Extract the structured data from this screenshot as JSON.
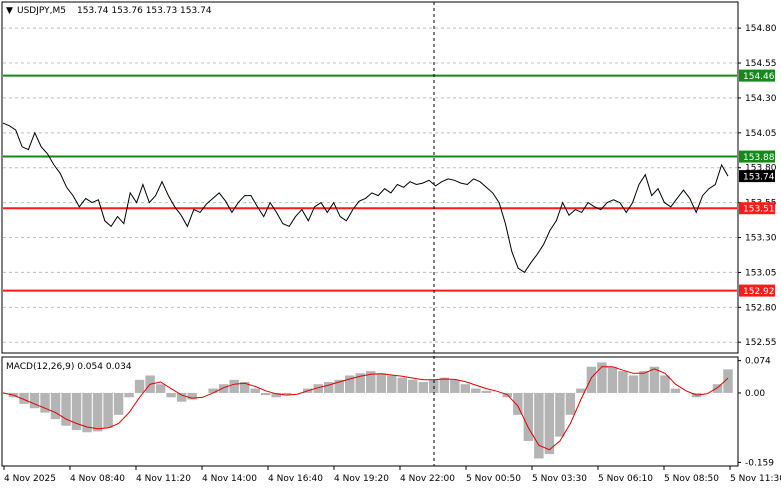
{
  "header": {
    "symbol": "USDJPY,M5",
    "ohlc": "153.74 153.76 153.73 153.74"
  },
  "macd_header": {
    "label": "MACD(12,26,9) 0.054 0.034"
  },
  "colors": {
    "resistance": "#138a1a",
    "support": "#ff1a1a",
    "price_line": "#000000",
    "macd_hist": "#b4b4b4",
    "signal": "#e00000",
    "grid": "#b8c0c8"
  },
  "chart_data": [
    {
      "type": "line",
      "series": [
        {
          "name": "USDJPY,M5",
          "values": [
            154.12,
            154.1,
            154.07,
            153.95,
            153.93,
            154.05,
            153.95,
            153.9,
            153.82,
            153.76,
            153.66,
            153.6,
            153.52,
            153.58,
            153.55,
            153.57,
            153.42,
            153.38,
            153.45,
            153.4,
            153.62,
            153.55,
            153.68,
            153.55,
            153.6,
            153.7,
            153.6,
            153.52,
            153.46,
            153.38,
            153.5,
            153.48,
            153.54,
            153.58,
            153.62,
            153.56,
            153.48,
            153.55,
            153.6,
            153.6,
            153.52,
            153.45,
            153.55,
            153.48,
            153.4,
            153.38,
            153.45,
            153.5,
            153.42,
            153.52,
            153.55,
            153.48,
            153.55,
            153.45,
            153.42,
            153.5,
            153.56,
            153.58,
            153.62,
            153.6,
            153.65,
            153.62,
            153.68,
            153.66,
            153.7,
            153.68,
            153.69,
            153.71,
            153.67,
            153.7,
            153.72,
            153.71,
            153.69,
            153.68,
            153.72,
            153.7,
            153.66,
            153.62,
            153.55,
            153.4,
            153.2,
            153.08,
            153.05,
            153.12,
            153.18,
            153.25,
            153.35,
            153.42,
            153.55,
            153.46,
            153.5,
            153.48,
            153.55,
            153.52,
            153.5,
            153.55,
            153.57,
            153.55,
            153.48,
            153.55,
            153.68,
            153.75,
            153.6,
            153.65,
            153.55,
            153.52,
            153.58,
            153.64,
            153.58,
            153.48,
            153.6,
            153.65,
            153.68,
            153.82,
            153.74
          ]
        }
      ],
      "ylim": [
        152.48,
        154.98
      ],
      "yticks": [
        152.55,
        152.8,
        153.05,
        153.3,
        153.55,
        153.8,
        154.05,
        154.3,
        154.55,
        154.8
      ],
      "x_tick_labels": [
        "4 Nov 2025",
        "4 Nov 08:40",
        "4 Nov 11:20",
        "4 Nov 14:00",
        "4 Nov 16:40",
        "4 Nov 19:20",
        "4 Nov 22:00",
        "5 Nov 00:50",
        "5 Nov 03:30",
        "5 Nov 06:10",
        "5 Nov 08:50",
        "5 Nov 11:30"
      ],
      "levels": [
        {
          "value": 154.46,
          "label": "154.46",
          "kind": "resistance"
        },
        {
          "value": 153.88,
          "label": "153.88",
          "kind": "resistance"
        },
        {
          "value": 153.51,
          "label": "153.51",
          "kind": "support"
        },
        {
          "value": 152.92,
          "label": "152.92",
          "kind": "support"
        }
      ],
      "current_price": {
        "value": 153.74,
        "label": "153.74"
      },
      "grid": true
    },
    {
      "type": "bar",
      "title": "MACD(12,26,9) 0.054 0.034",
      "series": [
        {
          "name": "MACD",
          "values": [
            0.0,
            -0.01,
            -0.025,
            -0.035,
            -0.045,
            -0.06,
            -0.075,
            -0.085,
            -0.09,
            -0.088,
            -0.08,
            -0.05,
            -0.01,
            0.03,
            0.04,
            0.02,
            -0.01,
            -0.02,
            -0.015,
            0.0,
            0.01,
            0.02,
            0.03,
            0.025,
            0.01,
            -0.005,
            -0.01,
            -0.005,
            0.0,
            0.01,
            0.02,
            0.025,
            0.03,
            0.04,
            0.045,
            0.05,
            0.045,
            0.04,
            0.035,
            0.03,
            0.025,
            0.03,
            0.035,
            0.03,
            0.02,
            0.01,
            0.005,
            0.0,
            -0.01,
            -0.05,
            -0.11,
            -0.15,
            -0.14,
            -0.1,
            -0.05,
            0.01,
            0.06,
            0.07,
            0.06,
            0.05,
            0.04,
            0.05,
            0.06,
            0.04,
            0.01,
            0.0,
            -0.01,
            0.0,
            0.02,
            0.054
          ]
        },
        {
          "name": "Signal",
          "values": [
            0.0,
            -0.005,
            -0.015,
            -0.025,
            -0.035,
            -0.045,
            -0.06,
            -0.07,
            -0.078,
            -0.082,
            -0.08,
            -0.07,
            -0.045,
            -0.01,
            0.02,
            0.025,
            0.01,
            -0.005,
            -0.012,
            -0.01,
            0.0,
            0.012,
            0.02,
            0.022,
            0.015,
            0.005,
            -0.002,
            -0.005,
            -0.003,
            0.005,
            0.012,
            0.018,
            0.025,
            0.032,
            0.038,
            0.043,
            0.044,
            0.041,
            0.038,
            0.034,
            0.03,
            0.03,
            0.032,
            0.031,
            0.026,
            0.018,
            0.01,
            0.004,
            -0.004,
            -0.03,
            -0.08,
            -0.12,
            -0.13,
            -0.11,
            -0.07,
            -0.015,
            0.035,
            0.06,
            0.06,
            0.052,
            0.045,
            0.045,
            0.055,
            0.045,
            0.02,
            0.005,
            -0.005,
            -0.002,
            0.012,
            0.034
          ]
        }
      ],
      "ylim": [
        -0.165,
        0.08
      ],
      "yticks": [
        0.074,
        0.0,
        -0.159
      ],
      "ytick_labels": [
        "0.074",
        "0.00",
        "-0.159"
      ]
    }
  ]
}
